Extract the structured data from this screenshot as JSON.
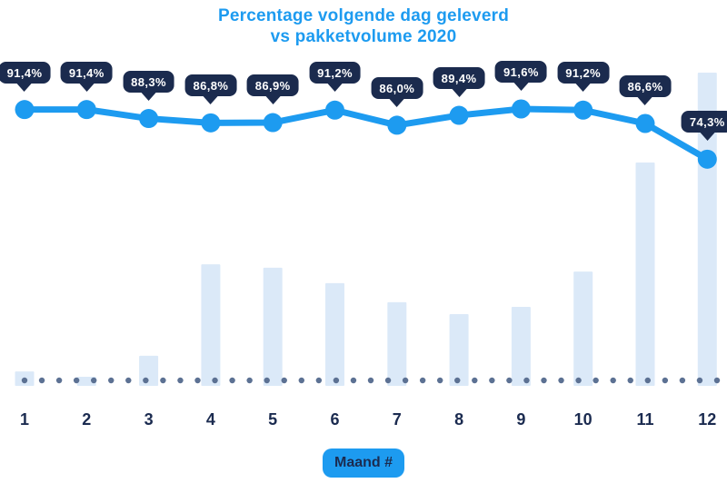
{
  "title": {
    "line1": "Percentage volgende dag geleverd",
    "line2": "vs pakketvolume 2020"
  },
  "x_axis_label": "Maand #",
  "colors": {
    "accent": "#1D9BF0",
    "navy": "#1B2B50",
    "tooltip_bg": "#1B2B4E",
    "tooltip_text": "#FFFFFF",
    "bar_fill": "#DBE9F8",
    "dot": "#5C7193",
    "background": "#FFFFFF"
  },
  "chart_data": [
    {
      "type": "line",
      "name": "Percentage volgende dag geleverd",
      "categories": [
        "1",
        "2",
        "3",
        "4",
        "5",
        "6",
        "7",
        "8",
        "9",
        "10",
        "11",
        "12"
      ],
      "values": [
        91.4,
        91.4,
        88.3,
        86.8,
        86.9,
        91.2,
        86.0,
        89.4,
        91.6,
        91.2,
        86.6,
        74.3
      ],
      "point_labels": [
        "91,4%",
        "91,4%",
        "88,3%",
        "86,8%",
        "86,9%",
        "91,2%",
        "86,0%",
        "89,4%",
        "91,6%",
        "91,2%",
        "86,6%",
        "74,3%"
      ],
      "unit": "%",
      "ylim": [
        70,
        95
      ],
      "xlabel": "Maand #",
      "ylabel": "",
      "legend": "none",
      "grid": "off",
      "marker": "circle",
      "baseline_style": "dotted"
    },
    {
      "type": "bar",
      "name": "Pakketvolume 2020",
      "categories": [
        "1",
        "2",
        "3",
        "4",
        "5",
        "6",
        "7",
        "8",
        "9",
        "10",
        "11",
        "12"
      ],
      "values": [
        4.6,
        2.9,
        9.6,
        38.8,
        37.7,
        32.8,
        26.7,
        22.9,
        25.2,
        36.5,
        71.3,
        100
      ],
      "values_unit": "relative, percent of December max (axis values not shown in image)",
      "ylim": [
        0,
        100
      ]
    }
  ]
}
